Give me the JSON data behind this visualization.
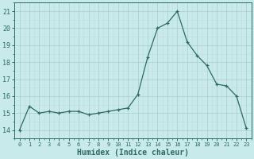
{
  "x": [
    0,
    1,
    2,
    3,
    4,
    5,
    6,
    7,
    8,
    9,
    10,
    11,
    12,
    13,
    14,
    15,
    16,
    17,
    18,
    19,
    20,
    21,
    22,
    23
  ],
  "y": [
    14.0,
    15.4,
    15.0,
    15.1,
    15.0,
    15.1,
    15.1,
    14.9,
    15.0,
    15.1,
    15.2,
    15.3,
    16.1,
    18.3,
    20.0,
    20.3,
    21.0,
    19.2,
    18.4,
    17.8,
    16.7,
    16.6,
    16.0,
    14.1
  ],
  "line_color": "#2d6b5e",
  "bg_color": "#c8eaea",
  "grid_major_color": "#b0d0d0",
  "grid_minor_color": "#c0dcdc",
  "xlabel": "Humidex (Indice chaleur)",
  "yticks": [
    14,
    15,
    16,
    17,
    18,
    19,
    20,
    21
  ],
  "xlim": [
    -0.5,
    23.5
  ],
  "ylim": [
    13.5,
    21.5
  ]
}
